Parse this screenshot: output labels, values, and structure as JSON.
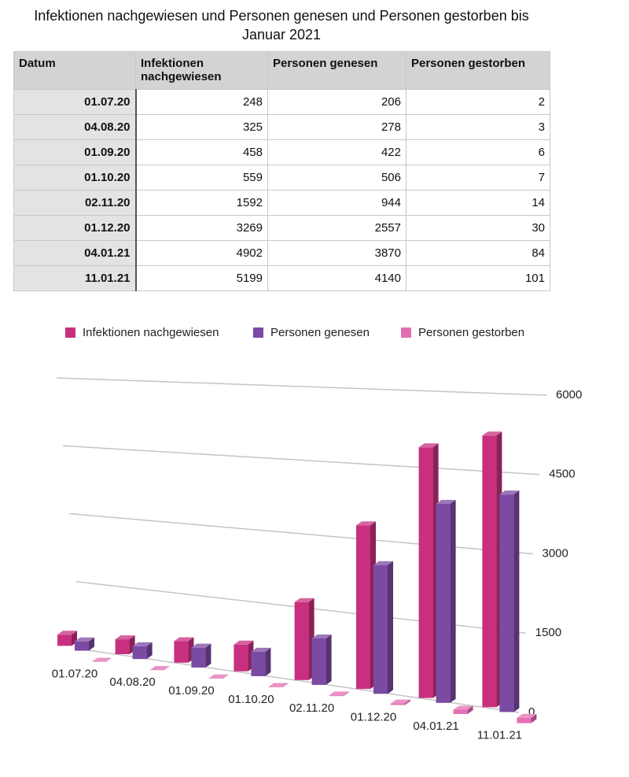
{
  "title": "Infektionen nachgewiesen und Personen genesen und Personen gestorben bis Januar 2021",
  "table": {
    "header": [
      "Datum",
      "Infektionen nachgewiesen",
      "Personen genesen",
      "Personen gestorben"
    ],
    "rows": [
      [
        "01.07.20",
        248,
        206,
        2
      ],
      [
        "04.08.20",
        325,
        278,
        3
      ],
      [
        "01.09.20",
        458,
        422,
        6
      ],
      [
        "01.10.20",
        559,
        506,
        7
      ],
      [
        "02.11.20",
        1592,
        944,
        14
      ],
      [
        "01.12.20",
        3269,
        2557,
        30
      ],
      [
        "04.01.21",
        4902,
        3870,
        84
      ],
      [
        "11.01.21",
        5199,
        4140,
        101
      ]
    ]
  },
  "chart_data": {
    "type": "bar3d",
    "categories": [
      "01.07.20",
      "04.08.20",
      "01.09.20",
      "01.10.20",
      "02.11.20",
      "01.12.20",
      "04.01.21",
      "11.01.21"
    ],
    "series": [
      {
        "name": "Infektionen nachgewiesen",
        "color": "#c8307f",
        "values": [
          248,
          325,
          458,
          559,
          1592,
          3269,
          4902,
          5199
        ]
      },
      {
        "name": "Personen genesen",
        "color": "#7b4aa3",
        "values": [
          206,
          278,
          422,
          506,
          944,
          2557,
          3870,
          4140
        ]
      },
      {
        "name": "Personen gestorben",
        "color": "#e46eb2",
        "values": [
          2,
          3,
          6,
          7,
          14,
          30,
          84,
          101
        ]
      }
    ],
    "ylim": [
      0,
      6000
    ],
    "yticks": [
      0,
      1500,
      3000,
      4500,
      6000
    ],
    "grid": true
  }
}
